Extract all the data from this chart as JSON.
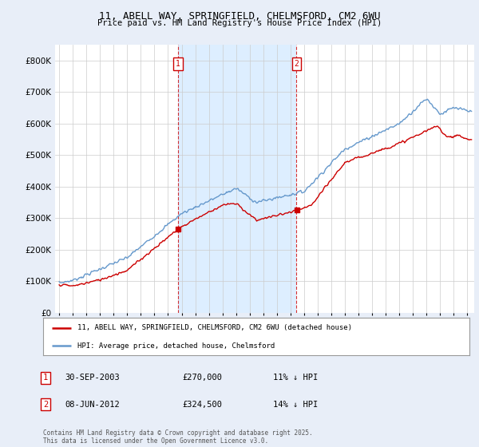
{
  "title1": "11, ABELL WAY, SPRINGFIELD, CHELMSFORD, CM2 6WU",
  "title2": "Price paid vs. HM Land Registry's House Price Index (HPI)",
  "bg_color": "#e8eef8",
  "plot_bg": "#ffffff",
  "red_color": "#cc0000",
  "blue_color": "#6699cc",
  "shade_color": "#ddeeff",
  "vline_color": "#cc0000",
  "marker1_x": 2003.75,
  "marker2_x": 2012.44,
  "legend1": "11, ABELL WAY, SPRINGFIELD, CHELMSFORD, CM2 6WU (detached house)",
  "legend2": "HPI: Average price, detached house, Chelmsford",
  "table_rows": [
    {
      "num": "1",
      "date": "30-SEP-2003",
      "price": "£270,000",
      "hpi": "11% ↓ HPI"
    },
    {
      "num": "2",
      "date": "08-JUN-2012",
      "price": "£324,500",
      "hpi": "14% ↓ HPI"
    }
  ],
  "footer": "Contains HM Land Registry data © Crown copyright and database right 2025.\nThis data is licensed under the Open Government Licence v3.0.",
  "ylim_max": 850000,
  "xlim_start": 1994.7,
  "xlim_end": 2025.5,
  "yticks": [
    0,
    100000,
    200000,
    300000,
    400000,
    500000,
    600000,
    700000,
    800000
  ]
}
